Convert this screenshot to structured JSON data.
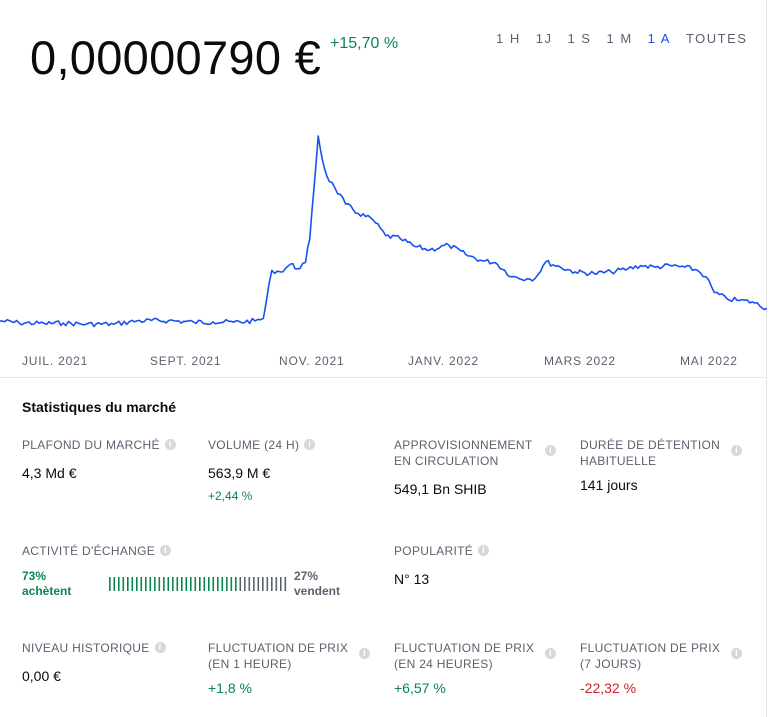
{
  "price": {
    "value": "0,00000790 €",
    "change": "+15,70 %"
  },
  "time_ranges": [
    {
      "label": "1 H",
      "active": false
    },
    {
      "label": "1J",
      "active": false
    },
    {
      "label": "1 S",
      "active": false
    },
    {
      "label": "1 M",
      "active": false
    },
    {
      "label": "1 A",
      "active": true
    },
    {
      "label": "TOUTES",
      "active": false
    }
  ],
  "colors": {
    "line": "#1652f0",
    "positive": "#098551",
    "negative": "#cf202f",
    "sell_bar": "#5b616e"
  },
  "chart_data": {
    "type": "line",
    "title": "",
    "xlabel": "",
    "ylabel": "",
    "grid": false,
    "x_tick_labels": [
      "JUIL. 2021",
      "SEPT. 2021",
      "NOV. 2021",
      "JANV. 2022",
      "MARS 2022",
      "MAI 2022"
    ],
    "x_start": "2021-06-01",
    "x_end": "2022-05-31",
    "ylim": [
      4.5e-06,
      6.65e-05
    ],
    "series": [
      {
        "x": [
          "2021-06-01",
          "2021-06-10",
          "2021-06-22",
          "2021-07-01",
          "2021-07-12",
          "2021-07-25",
          "2021-08-05",
          "2021-08-20",
          "2021-09-01",
          "2021-09-10",
          "2021-09-20",
          "2021-09-30",
          "2021-10-04",
          "2021-10-08",
          "2021-10-12",
          "2021-10-17",
          "2021-10-20",
          "2021-10-24",
          "2021-10-26",
          "2021-10-28",
          "2021-10-30",
          "2021-11-01",
          "2021-11-03",
          "2021-11-07",
          "2021-11-12",
          "2021-11-18",
          "2021-11-25",
          "2021-12-01",
          "2021-12-08",
          "2021-12-15",
          "2021-12-22",
          "2021-12-31",
          "2022-01-08",
          "2022-01-16",
          "2022-01-22",
          "2022-01-30",
          "2022-02-06",
          "2022-02-10",
          "2022-02-15",
          "2022-02-22",
          "2022-03-01",
          "2022-03-10",
          "2022-03-18",
          "2022-03-26",
          "2022-04-01",
          "2022-04-08",
          "2022-04-15",
          "2022-04-22",
          "2022-04-28",
          "2022-05-02",
          "2022-05-06",
          "2022-05-12",
          "2022-05-18",
          "2022-05-24",
          "2022-05-31"
        ],
        "y": [
          8e-06,
          7.4e-06,
          7.2e-06,
          7.3e-06,
          7e-06,
          7e-06,
          8e-06,
          8.1e-06,
          7.6e-06,
          7.7e-06,
          7.6e-06,
          8e-06,
          8.8e-06,
          2.4e-05,
          2.35e-05,
          2.6e-05,
          2.45e-05,
          2.65e-05,
          3.4e-05,
          5e-05,
          6.65e-05,
          5.9e-05,
          5.4e-05,
          5e-05,
          4.5e-05,
          4.2e-05,
          4e-05,
          3.5e-05,
          3.4e-05,
          3.15e-05,
          3.05e-05,
          3.2e-05,
          2.9e-05,
          2.7e-05,
          2.65e-05,
          2.2e-05,
          2.13e-05,
          2.15e-05,
          2.67e-05,
          2.5e-05,
          2.35e-05,
          2.3e-05,
          2.35e-05,
          2.45e-05,
          2.55e-05,
          2.5e-05,
          2.55e-05,
          2.5e-05,
          2.4e-05,
          2.2e-05,
          1.7e-05,
          1.5e-05,
          1.45e-05,
          1.4e-05,
          1.2e-05
        ]
      }
    ]
  },
  "market_stats": {
    "title": "Statistiques du marché",
    "market_cap": {
      "label": "PLAFOND DU MARCHÉ",
      "value": "4,3 Md €"
    },
    "volume": {
      "label": "VOLUME (24 H)",
      "value": "563,9 M €",
      "change": "+2,44 %"
    },
    "supply": {
      "label": "APPROVISIONNEMENT\nEN CIRCULATION",
      "value": "549,1 Bn SHIB"
    },
    "holding": {
      "label": "DURÉE DE DÉTENTION\nHABITUELLE",
      "value": "141 jours"
    },
    "trading": {
      "label": "ACTIVITÉ D'ÉCHANGE",
      "buy_percent": "73%",
      "buy_label": "achètent",
      "sell_percent": "27%",
      "sell_label": "vendent",
      "buy_share": 0.73
    },
    "popularity": {
      "label": "POPULARITÉ",
      "value": "N° 13"
    },
    "all_time_high": {
      "label": "NIVEAU HISTORIQUE",
      "value": "0,00 €"
    },
    "change_1h": {
      "label": "FLUCTUATION DE PRIX\n(EN 1 HEURE)",
      "value": "+1,8 %"
    },
    "change_24h": {
      "label": "FLUCTUATION DE PRIX\n(EN 24 HEURES)",
      "value": "+6,57 %"
    },
    "change_7d": {
      "label": "FLUCTUATION DE PRIX\n(7 JOURS)",
      "value": "-22,32 %"
    }
  }
}
